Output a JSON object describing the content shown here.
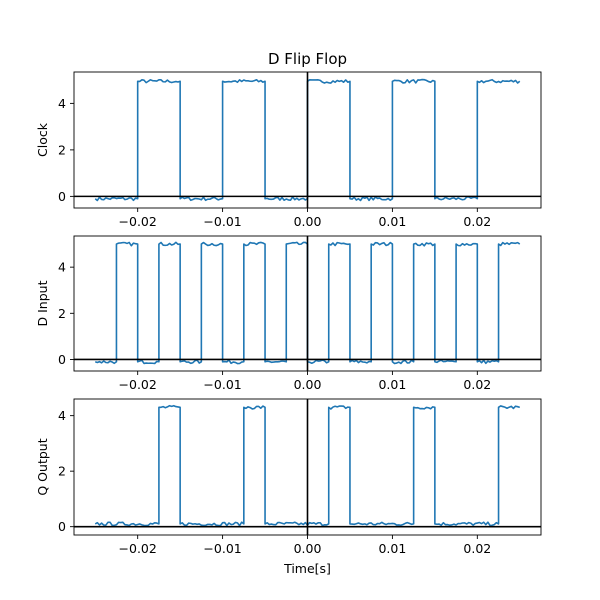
{
  "title": "D Flip Flop",
  "xlabel": "Time[s]",
  "colors": {
    "series": "#1f77b4",
    "reference": "#000000",
    "frame": "#000000"
  },
  "chart_data": [
    {
      "type": "line",
      "ylabel": "Clock",
      "xlim": [
        -0.0275,
        0.0275
      ],
      "ylim": [
        -0.5,
        5.35
      ],
      "xticks": [
        -0.02,
        -0.01,
        0.0,
        0.01,
        0.02
      ],
      "xtick_labels": [
        "−0.02",
        "−0.01",
        "0.00",
        "0.01",
        "0.02"
      ],
      "yticks": [
        0,
        2,
        4
      ],
      "ytick_labels": [
        "0",
        "2",
        "4"
      ],
      "reference_lines": {
        "x": 0,
        "y": 0
      },
      "low": -0.1,
      "high": 4.95,
      "x_start": -0.025,
      "x_end": 0.025,
      "start_level": "low",
      "transitions": [
        -0.02,
        -0.015,
        -0.01,
        -0.005,
        0.0,
        0.005,
        0.01,
        0.015,
        0.02
      ]
    },
    {
      "type": "line",
      "ylabel": "D Input",
      "xlim": [
        -0.0275,
        0.0275
      ],
      "ylim": [
        -0.5,
        5.35
      ],
      "xticks": [
        -0.02,
        -0.01,
        0.0,
        0.01,
        0.02
      ],
      "xtick_labels": [
        "−0.02",
        "−0.01",
        "0.00",
        "0.01",
        "0.02"
      ],
      "yticks": [
        0,
        2,
        4
      ],
      "ytick_labels": [
        "0",
        "2",
        "4"
      ],
      "reference_lines": {
        "x": 0,
        "y": 0
      },
      "low": -0.1,
      "high": 5.0,
      "x_start": -0.025,
      "x_end": 0.025,
      "start_level": "low",
      "transitions": [
        -0.0225,
        -0.02,
        -0.0175,
        -0.015,
        -0.0125,
        -0.01,
        -0.0075,
        -0.005,
        -0.0025,
        0.0,
        0.0025,
        0.005,
        0.0075,
        0.01,
        0.0125,
        0.015,
        0.0175,
        0.02,
        0.0225,
        0.025
      ]
    },
    {
      "type": "line",
      "ylabel": "Q Output",
      "xlim": [
        -0.0275,
        0.0275
      ],
      "ylim": [
        -0.3,
        4.6
      ],
      "xticks": [
        -0.02,
        -0.01,
        0.0,
        0.01,
        0.02
      ],
      "xtick_labels": [
        "−0.02",
        "−0.01",
        "0.00",
        "0.01",
        "0.02"
      ],
      "yticks": [
        0,
        2,
        4
      ],
      "ytick_labels": [
        "0",
        "2",
        "4"
      ],
      "reference_lines": {
        "x": 0,
        "y": 0
      },
      "low": 0.1,
      "high": 4.3,
      "x_start": -0.025,
      "x_end": 0.025,
      "start_level": "low",
      "transitions": [
        -0.0175,
        -0.015,
        -0.0075,
        -0.005,
        0.0025,
        0.005,
        0.0125,
        0.015,
        0.0225,
        0.025
      ]
    }
  ]
}
